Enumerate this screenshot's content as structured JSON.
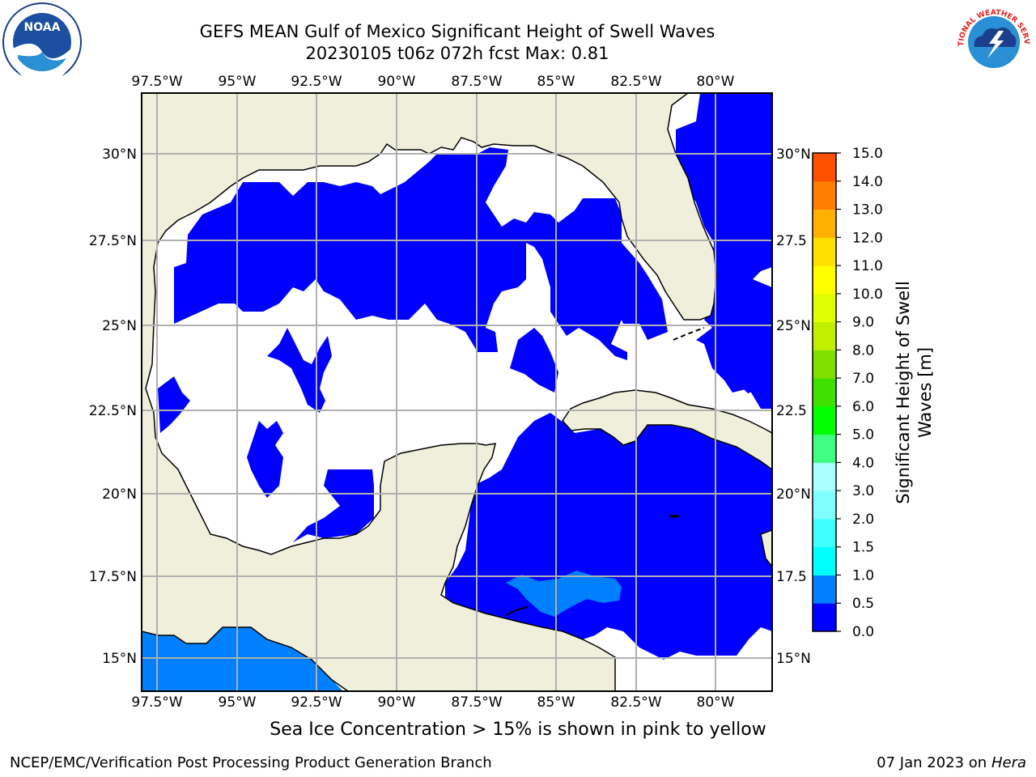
{
  "title_line1": "GEFS MEAN Gulf of Mexico Significant Height of Swell Waves",
  "title_line2": "20230105 t06z 072h fcst   Max: 0.81",
  "lon_ticks": [
    "97.5°W",
    "95°W",
    "92.5°W",
    "90°W",
    "87.5°W",
    "85°W",
    "82.5°W",
    "80°W"
  ],
  "lat_ticks_left": [
    "30°N",
    "27.5°N",
    "25°N",
    "22.5°N",
    "20°N",
    "17.5°N",
    "15°N"
  ],
  "lat_ticks_right": [
    "30°N",
    "27.5",
    "25°N",
    "22.5",
    "20°N",
    "17.5",
    "15°N"
  ],
  "colorbar": {
    "label_line1": "Significant Height of Swell",
    "label_line2": "Waves [m]",
    "ticks": [
      "0.0",
      "0.5",
      "1.0",
      "1.5",
      "2.0",
      "3.0",
      "4.0",
      "5.0",
      "6.0",
      "7.0",
      "8.0",
      "9.0",
      "10.0",
      "11.0",
      "12.0",
      "13.0",
      "14.0",
      "15.0"
    ],
    "colors": [
      "#0000ff",
      "#0080ff",
      "#00ffff",
      "#40ffff",
      "#80ffff",
      "#aaffff",
      "#40ff80",
      "#00ff00",
      "#40e000",
      "#80e000",
      "#c0f000",
      "#e0ff00",
      "#ffff00",
      "#ffe000",
      "#ffb000",
      "#ff8000",
      "#ff5000",
      "#ff2000",
      "#ff0000"
    ]
  },
  "ice_note": "Sea Ice Concentration > 15% is shown in pink to yellow",
  "credit": "NCEP/EMC/Verification Post Processing Product Generation Branch",
  "date_text": "07 Jan 2023 on ",
  "host": "Hera",
  "colors": {
    "land": "#efefdc",
    "ocean_blue": "#0000ff",
    "swell_light": "#0080ff",
    "grid": "#b0b0b0"
  },
  "logo_left": "NOAA",
  "logo_right": "NATIONAL WEATHER SERVICE"
}
